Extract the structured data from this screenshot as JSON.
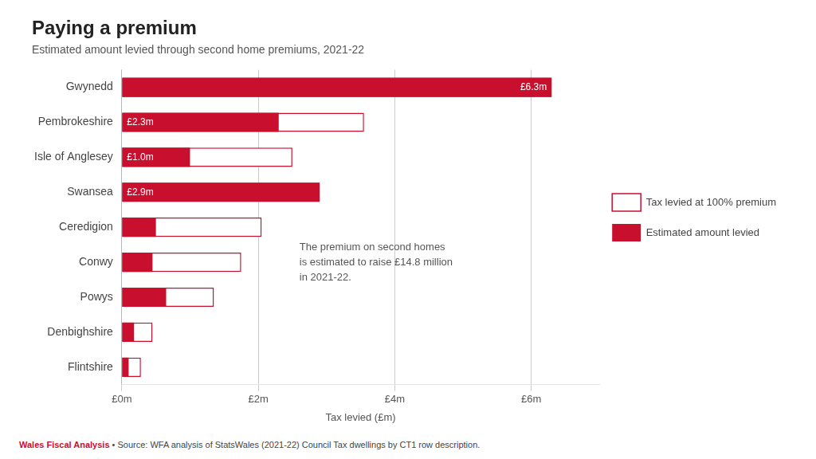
{
  "chart_data": {
    "type": "bar",
    "orientation": "horizontal",
    "title": "Paying a premium",
    "subtitle": "Estimated amount levied through second home premiums, 2021-22",
    "xlabel": "Tax levied (£m)",
    "annotation": "The premium on second homes\nis estimated to raise £14.8 million\nin 2021-22.",
    "footer": {
      "bold": "Wales Fiscal Analysis",
      "text": " • Source: WFA analysis of StatsWales (2021-22) Council Tax dwellings by CT1 row description."
    },
    "categories": [
      "Gwynedd",
      "Pembrokeshire",
      "Isle of Anglesey",
      "Swansea",
      "Ceredigion",
      "Conwy",
      "Powys",
      "Denbighshire",
      "Flintshire"
    ],
    "series": [
      {
        "name": "Tax levied at 100% premium",
        "color": "#C8102E",
        "values": [
          6.3,
          3.55,
          2.5,
          2.9,
          2.05,
          1.75,
          1.35,
          0.45,
          0.28
        ]
      },
      {
        "name": "Estimated amount levied",
        "color": "#C8102E",
        "data_labels": true,
        "values": [
          6.3,
          2.3,
          1.0,
          2.9,
          0.5,
          0.45,
          0.65,
          0.18,
          0.1
        ],
        "value_labels": [
          "£6.3m",
          "£2.3m",
          "£1.0m",
          "£2.9m",
          null,
          null,
          null,
          null,
          null
        ]
      }
    ],
    "xlim": [
      0,
      7
    ],
    "xticks": [
      {
        "value": 0,
        "label": "£0m"
      },
      {
        "value": 2,
        "label": "£2m"
      },
      {
        "value": 4,
        "label": "£4m"
      },
      {
        "value": 6,
        "label": "£6m"
      }
    ],
    "grid": true,
    "legend": "right"
  }
}
